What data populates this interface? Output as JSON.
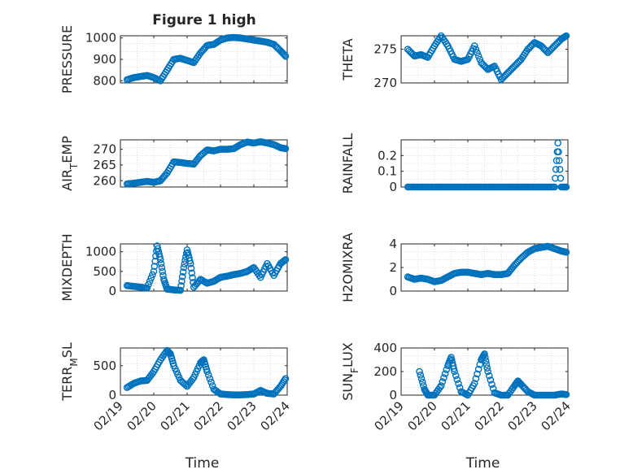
{
  "figure": {
    "title": "Figure 1 high",
    "x_ticks": [
      "02/19",
      "02/20",
      "02/21",
      "02/22",
      "02/23",
      "02/24"
    ],
    "x_label": "Time",
    "marker_color": "#0072bd",
    "axis_color": "#262626",
    "grid_color": "#c8c8c8"
  },
  "chart_data": [
    {
      "type": "scatter",
      "ylabel": "PRESSURE",
      "ylim": [
        790,
        1010
      ],
      "yticks": [
        "800",
        "900",
        "1000"
      ],
      "xlim": [
        0,
        5
      ],
      "x": [
        0.2,
        0.4,
        0.6,
        0.8,
        1.0,
        1.2,
        1.4,
        1.6,
        1.8,
        2.0,
        2.2,
        2.4,
        2.6,
        2.8,
        3.0,
        3.2,
        3.4,
        3.6,
        3.8,
        4.0,
        4.2,
        4.4,
        4.6,
        4.8,
        4.95
      ],
      "values": [
        805,
        815,
        820,
        825,
        815,
        800,
        850,
        900,
        905,
        895,
        885,
        930,
        965,
        970,
        990,
        1000,
        1002,
        1000,
        995,
        990,
        985,
        980,
        970,
        940,
        915
      ]
    },
    {
      "type": "scatter",
      "ylabel": "THETA",
      "ylim": [
        270,
        277
      ],
      "yticks": [
        "270",
        "275"
      ],
      "xlim": [
        0,
        5
      ],
      "x": [
        0.2,
        0.4,
        0.6,
        0.8,
        1.0,
        1.2,
        1.4,
        1.6,
        1.8,
        2.0,
        2.2,
        2.4,
        2.6,
        2.8,
        3.0,
        3.2,
        3.4,
        3.6,
        3.8,
        4.0,
        4.2,
        4.4,
        4.6,
        4.8,
        4.95
      ],
      "values": [
        275,
        274,
        274.2,
        273.8,
        275.5,
        277,
        275.5,
        273.5,
        273.2,
        273.5,
        275.5,
        273,
        272,
        272.5,
        270.5,
        271.5,
        272.5,
        273.5,
        275,
        276,
        275.5,
        274.5,
        275.5,
        276.5,
        277
      ]
    },
    {
      "type": "scatter",
      "ylabel_main": "AIR",
      "ylabel_sub": "T",
      "ylabel_tail": "EMP",
      "ylim": [
        258,
        273
      ],
      "yticks": [
        "260",
        "265",
        "270"
      ],
      "xlim": [
        0,
        5
      ],
      "x": [
        0.2,
        0.4,
        0.6,
        0.8,
        1.0,
        1.2,
        1.4,
        1.6,
        1.8,
        2.0,
        2.2,
        2.4,
        2.6,
        2.8,
        3.0,
        3.2,
        3.4,
        3.6,
        3.8,
        4.0,
        4.2,
        4.4,
        4.6,
        4.8,
        4.95
      ],
      "values": [
        259,
        259.2,
        259.5,
        259.8,
        259.5,
        260,
        262.5,
        266,
        265.8,
        265.5,
        265.3,
        268,
        269.8,
        269.5,
        270,
        270,
        270.2,
        271.5,
        272.3,
        272,
        272.4,
        272,
        271.5,
        270.5,
        270.2
      ]
    },
    {
      "type": "scatter",
      "ylabel": "RAINFALL",
      "ylim": [
        0,
        0.3
      ],
      "yticks": [
        "0",
        "0.1",
        "0.2"
      ],
      "xlim": [
        0,
        5
      ],
      "x": [
        0.2,
        0.4,
        0.6,
        0.8,
        1.0,
        1.2,
        1.4,
        1.6,
        1.8,
        2.0,
        2.2,
        2.4,
        2.6,
        2.8,
        3.0,
        3.2,
        3.4,
        3.6,
        3.8,
        4.0,
        4.2,
        4.4,
        4.6,
        4.7,
        4.8,
        4.95
      ],
      "values": [
        0,
        0,
        0,
        0,
        0,
        0,
        0,
        0,
        0,
        0,
        0,
        0,
        0,
        0,
        0,
        0,
        0,
        0,
        0,
        0,
        0,
        0,
        0,
        0.28,
        0,
        0
      ]
    },
    {
      "type": "scatter",
      "ylabel": "MIXDEPTH",
      "ylim": [
        0,
        1200
      ],
      "yticks": [
        "0",
        "500",
        "1000"
      ],
      "xlim": [
        0,
        5
      ],
      "x": [
        0.2,
        0.4,
        0.6,
        0.8,
        1.0,
        1.1,
        1.2,
        1.3,
        1.4,
        1.6,
        1.8,
        1.9,
        2.0,
        2.1,
        2.2,
        2.4,
        2.6,
        2.8,
        3.0,
        3.2,
        3.4,
        3.6,
        3.8,
        4.0,
        4.2,
        4.4,
        4.6,
        4.8,
        4.95
      ],
      "values": [
        140,
        120,
        100,
        80,
        500,
        1150,
        800,
        300,
        50,
        30,
        20,
        600,
        1050,
        700,
        100,
        300,
        200,
        250,
        350,
        380,
        420,
        450,
        500,
        600,
        350,
        700,
        400,
        700,
        800
      ]
    },
    {
      "type": "scatter",
      "ylabel": "H2OMIXRA",
      "ylim": [
        0,
        4
      ],
      "yticks": [
        "0",
        "2",
        "4"
      ],
      "xlim": [
        0,
        5
      ],
      "x": [
        0.2,
        0.4,
        0.6,
        0.8,
        1.0,
        1.2,
        1.4,
        1.6,
        1.8,
        2.0,
        2.2,
        2.4,
        2.6,
        2.8,
        3.0,
        3.2,
        3.4,
        3.6,
        3.8,
        4.0,
        4.2,
        4.4,
        4.6,
        4.8,
        4.95
      ],
      "values": [
        1.2,
        1.0,
        1.1,
        1.0,
        0.8,
        0.9,
        1.2,
        1.5,
        1.6,
        1.6,
        1.5,
        1.4,
        1.5,
        1.4,
        1.4,
        1.5,
        2.2,
        2.8,
        3.3,
        3.6,
        3.7,
        3.8,
        3.6,
        3.4,
        3.3
      ]
    },
    {
      "type": "scatter",
      "ylabel_main": "TERR",
      "ylabel_sub": "M",
      "ylabel_tail": "SL",
      "ylim": [
        0,
        800
      ],
      "yticks": [
        "0",
        "500"
      ],
      "xlim": [
        0,
        5
      ],
      "x": [
        0.2,
        0.4,
        0.6,
        0.8,
        1.0,
        1.2,
        1.4,
        1.5,
        1.6,
        1.8,
        2.0,
        2.2,
        2.4,
        2.5,
        2.6,
        2.8,
        3.0,
        3.2,
        3.4,
        3.6,
        3.8,
        4.0,
        4.2,
        4.4,
        4.6,
        4.8,
        4.95
      ],
      "values": [
        130,
        200,
        240,
        250,
        400,
        600,
        760,
        700,
        500,
        250,
        150,
        300,
        550,
        600,
        400,
        100,
        20,
        10,
        5,
        5,
        10,
        20,
        80,
        30,
        20,
        150,
        280
      ]
    },
    {
      "type": "scatter",
      "ylabel_main": "SUN",
      "ylabel_sub": "F",
      "ylabel_tail": "LUX",
      "ylim": [
        0,
        400
      ],
      "yticks": [
        "0",
        "200",
        "400"
      ],
      "xlim": [
        0,
        5
      ],
      "x": [
        0.55,
        0.7,
        0.8,
        1.0,
        1.2,
        1.4,
        1.5,
        1.6,
        1.8,
        2.0,
        2.2,
        2.4,
        2.5,
        2.6,
        2.8,
        3.0,
        3.2,
        3.4,
        3.5,
        3.6,
        3.8,
        4.0,
        4.2,
        4.4,
        4.6,
        4.8,
        4.95
      ],
      "values": [
        200,
        50,
        0,
        0,
        80,
        250,
        320,
        200,
        30,
        0,
        100,
        300,
        350,
        200,
        20,
        0,
        0,
        80,
        120,
        90,
        30,
        0,
        0,
        0,
        0,
        10,
        5
      ]
    }
  ]
}
